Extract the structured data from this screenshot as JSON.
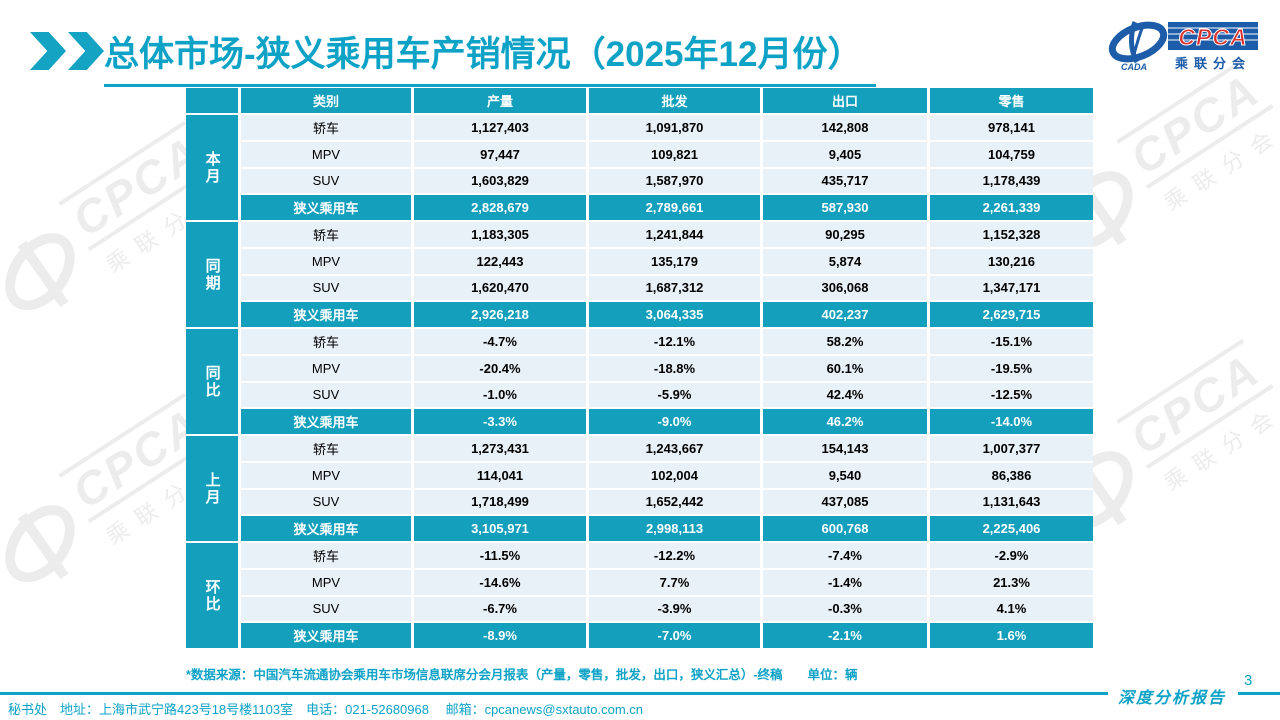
{
  "header": {
    "title": "总体市场-狭义乘用车产销情况（2025年12月份）"
  },
  "logo": {
    "cpca": "CPCA",
    "name_cn": "乘联分会",
    "cada": "CADA"
  },
  "watermark": {
    "cpca": "CPCA",
    "name_cn": "乘联分会"
  },
  "colors": {
    "accent_teal": "#149FBC",
    "title_teal": "#0DA2C6",
    "row_bg": "#E9F1F8",
    "logo_blue": "#1C5CA8",
    "logo_red": "#D8312E"
  },
  "table": {
    "columns": [
      "类别",
      "产量",
      "批发",
      "出口",
      "零售"
    ],
    "groups": [
      {
        "name": "本月",
        "rows": [
          [
            "轿车",
            "1,127,403",
            "1,091,870",
            "142,808",
            "978,141"
          ],
          [
            "MPV",
            "97,447",
            "109,821",
            "9,405",
            "104,759"
          ],
          [
            "SUV",
            "1,603,829",
            "1,587,970",
            "435,717",
            "1,178,439"
          ],
          [
            "狭义乘用车",
            "2,828,679",
            "2,789,661",
            "587,930",
            "2,261,339"
          ]
        ]
      },
      {
        "name": "同期",
        "rows": [
          [
            "轿车",
            "1,183,305",
            "1,241,844",
            "90,295",
            "1,152,328"
          ],
          [
            "MPV",
            "122,443",
            "135,179",
            "5,874",
            "130,216"
          ],
          [
            "SUV",
            "1,620,470",
            "1,687,312",
            "306,068",
            "1,347,171"
          ],
          [
            "狭义乘用车",
            "2,926,218",
            "3,064,335",
            "402,237",
            "2,629,715"
          ]
        ]
      },
      {
        "name": "同比",
        "rows": [
          [
            "轿车",
            "-4.7%",
            "-12.1%",
            "58.2%",
            "-15.1%"
          ],
          [
            "MPV",
            "-20.4%",
            "-18.8%",
            "60.1%",
            "-19.5%"
          ],
          [
            "SUV",
            "-1.0%",
            "-5.9%",
            "42.4%",
            "-12.5%"
          ],
          [
            "狭义乘用车",
            "-3.3%",
            "-9.0%",
            "46.2%",
            "-14.0%"
          ]
        ]
      },
      {
        "name": "上月",
        "rows": [
          [
            "轿车",
            "1,273,431",
            "1,243,667",
            "154,143",
            "1,007,377"
          ],
          [
            "MPV",
            "114,041",
            "102,004",
            "9,540",
            "86,386"
          ],
          [
            "SUV",
            "1,718,499",
            "1,652,442",
            "437,085",
            "1,131,643"
          ],
          [
            "狭义乘用车",
            "3,105,971",
            "2,998,113",
            "600,768",
            "2,225,406"
          ]
        ]
      },
      {
        "name": "环比",
        "rows": [
          [
            "轿车",
            "-11.5%",
            "-12.2%",
            "-7.4%",
            "-2.9%"
          ],
          [
            "MPV",
            "-14.6%",
            "7.7%",
            "-1.4%",
            "21.3%"
          ],
          [
            "SUV",
            "-6.7%",
            "-3.9%",
            "-0.3%",
            "4.1%"
          ],
          [
            "狭义乘用车",
            "-8.9%",
            "-7.0%",
            "-2.1%",
            "1.6%"
          ]
        ]
      }
    ]
  },
  "footnote": "*数据来源：中国汽车流通协会乘用车市场信息联席分会月报表（产量，零售，批发，出口，狭义汇总）-终稿　　单位：辆",
  "footer": {
    "text": "秘书处　地址：上海市武宁路423号18号楼1103室　电话：021-52680968　 邮箱：cpcanews@sxtauto.com.cn",
    "report_name": "深度分析报告",
    "page": "3"
  }
}
